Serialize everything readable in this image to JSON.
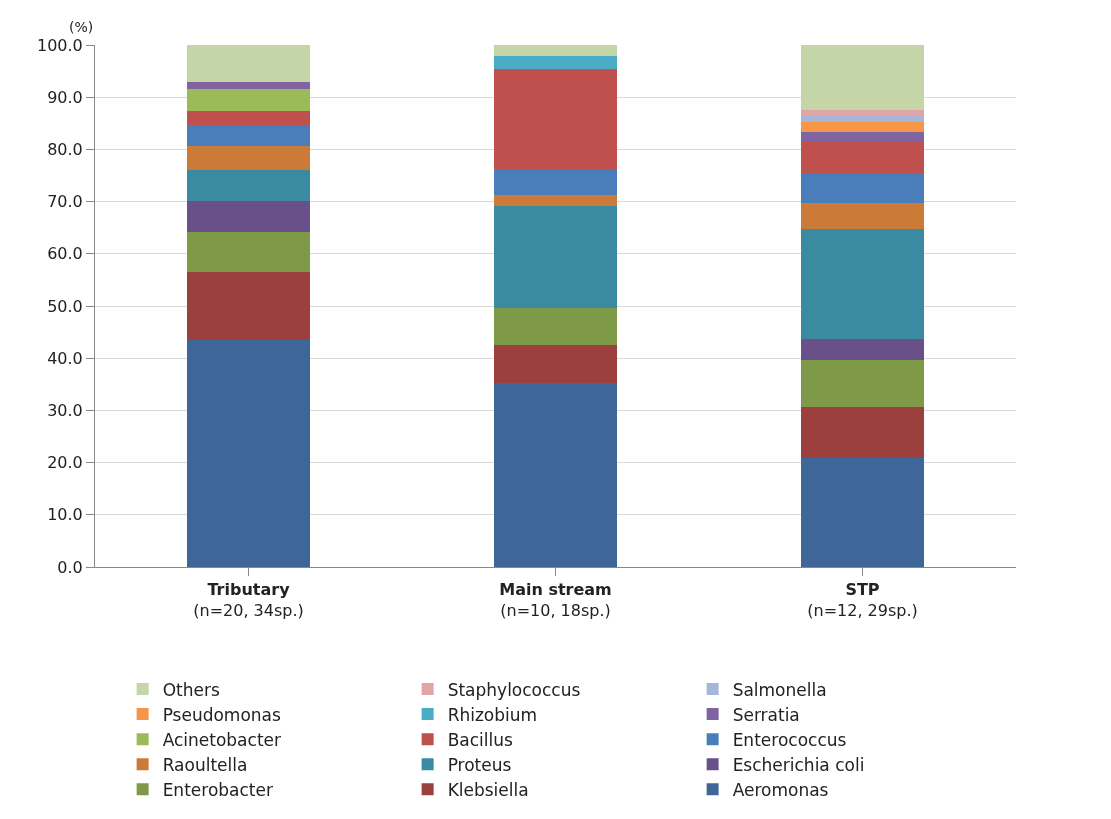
{
  "chart_data": {
    "type": "bar",
    "stacked": true,
    "categories": [
      "Tributary\n(n=20, 34sp.)",
      "Main stream\n(n=10, 18sp.)",
      "STP\n(n=12, 29sp.)"
    ],
    "ylabel": "(%)",
    "ylim": [
      0,
      100
    ],
    "yticks": [
      {
        "value": 0,
        "label": "0.0"
      },
      {
        "value": 10,
        "label": "10.0"
      },
      {
        "value": 20,
        "label": "20.0"
      },
      {
        "value": 30,
        "label": "30.0"
      },
      {
        "value": 40,
        "label": "40.0"
      },
      {
        "value": 50,
        "label": "50.0"
      },
      {
        "value": 60,
        "label": "60.0"
      },
      {
        "value": 70,
        "label": "70.0"
      },
      {
        "value": 80,
        "label": "80.0"
      },
      {
        "value": 90,
        "label": "90.0"
      },
      {
        "value": 100,
        "label": "100.0"
      }
    ],
    "grid": "y",
    "legend": "bottom",
    "series": [
      {
        "name": "Aeromonas",
        "color": "#3e6699",
        "values": [
          43.5,
          35.3,
          20.9
        ]
      },
      {
        "name": "Klebsiella",
        "color": "#9c403e",
        "values": [
          13.0,
          7.2,
          9.7
        ]
      },
      {
        "name": "Enterobacter",
        "color": "#7e9a48",
        "values": [
          7.7,
          7.2,
          9.0
        ]
      },
      {
        "name": "Escherichia coli",
        "color": "#6a5088",
        "values": [
          6.0,
          null,
          4.0
        ]
      },
      {
        "name": "Proteus",
        "color": "#3a8ba2",
        "values": [
          5.8,
          19.4,
          21.2
        ]
      },
      {
        "name": "Raoultella",
        "color": "#cb7a38",
        "values": [
          4.6,
          2.1,
          5.0
        ]
      },
      {
        "name": "Enterococcus",
        "color": "#4a7ebb",
        "values": [
          4.0,
          5.1,
          5.7
        ]
      },
      {
        "name": "Bacillus",
        "color": "#c0504d",
        "values": [
          2.8,
          19.1,
          6.2
        ]
      },
      {
        "name": "Acinetobacter",
        "color": "#9bbb59",
        "values": [
          4.1,
          null,
          null
        ]
      },
      {
        "name": "Serratia",
        "color": "#8064a2",
        "values": [
          1.4,
          null,
          1.7
        ]
      },
      {
        "name": "Rhizobium",
        "color": "#4bacc6",
        "values": [
          null,
          2.4,
          null
        ]
      },
      {
        "name": "Pseudomonas",
        "color": "#f79646",
        "values": [
          null,
          null,
          1.9
        ]
      },
      {
        "name": "Salmonella",
        "color": "#a5b6d8",
        "values": [
          null,
          null,
          1.1
        ]
      },
      {
        "name": "Staphylococcus",
        "color": "#e0a6a6",
        "values": [
          null,
          null,
          1.2
        ]
      },
      {
        "name": "Others",
        "color": "#c4d5a8",
        "values": [
          7.1,
          2.2,
          12.4
        ]
      }
    ]
  }
}
